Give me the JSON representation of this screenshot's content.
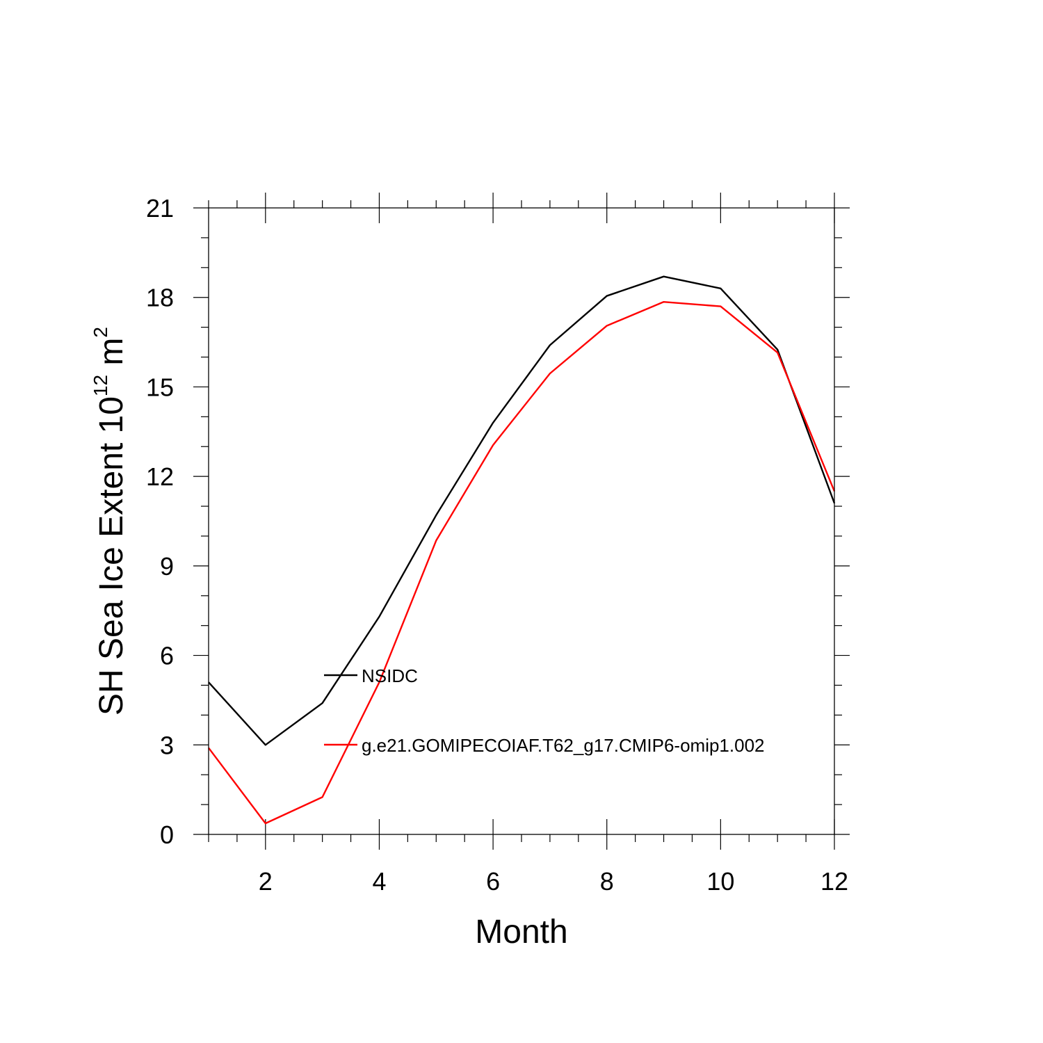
{
  "chart_data": {
    "type": "line",
    "xlabel": "Month",
    "ylabel": {
      "text": "SH Sea Ice Extent 10",
      "exponent": "12",
      "unit": " m",
      "unit_exponent": "2"
    },
    "xlim": [
      1,
      12
    ],
    "ylim": [
      0,
      21
    ],
    "x_ticks": [
      2,
      4,
      6,
      8,
      10,
      12
    ],
    "y_ticks": [
      0,
      3,
      6,
      9,
      12,
      15,
      18,
      21
    ],
    "x": [
      1,
      2,
      3,
      4,
      5,
      6,
      7,
      8,
      9,
      10,
      11,
      12
    ],
    "series": [
      {
        "name": "NSIDC",
        "color": "#000000",
        "values": [
          5.1,
          3.0,
          4.4,
          7.3,
          10.7,
          13.8,
          16.4,
          18.05,
          18.7,
          18.3,
          16.25,
          11.1
        ]
      },
      {
        "name": "g.e21.GOMIPECOIAF.T62_g17.CMIP6-omip1.002",
        "color": "#ff0000",
        "values": [
          2.9,
          0.37,
          1.25,
          5.1,
          9.85,
          13.05,
          15.45,
          17.05,
          17.85,
          17.7,
          16.15,
          11.5
        ]
      }
    ],
    "legend_position": "inside-center-left",
    "grid": false
  }
}
